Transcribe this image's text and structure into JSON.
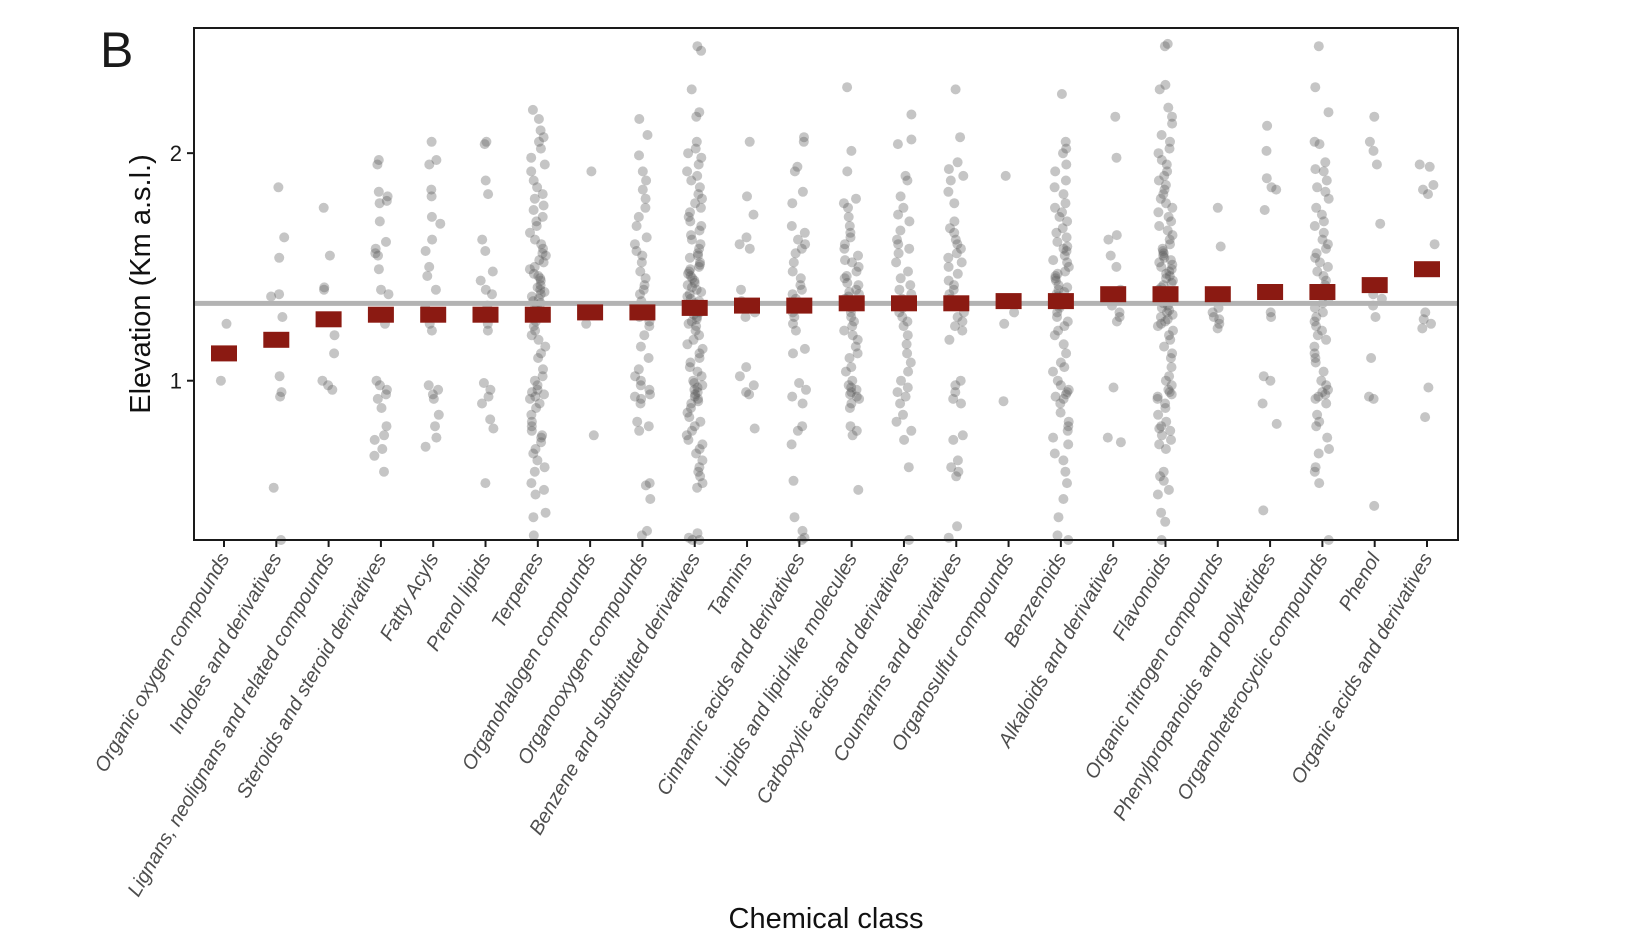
{
  "panel_label": "B",
  "chart_data": {
    "type": "scatter",
    "title": "",
    "xlabel": "Chemical class",
    "ylabel": "Elevation (Km a.s.l.)",
    "ylim": [
      0.3,
      2.55
    ],
    "yticks": [
      1,
      2
    ],
    "reference_line": 1.34,
    "grid": false,
    "legend": "none",
    "colors": {
      "points": "#595959",
      "mean_marker": "#8b1a12",
      "reference_line": "#b3b3b3",
      "frame": "#1a1a1a"
    },
    "categories": [
      "Organic oxygen compounds",
      "Indoles and derivatives",
      "Lignans, neolignans and related compounds",
      "Steroids and steroid derivatives",
      "Fatty Acyls",
      "Prenol lipids",
      "Terpenes",
      "Organohalogen compounds",
      "Organooxygen compounds",
      "Benzene and substituted derivatives",
      "Tannins",
      "Cinnamic acids and derivatives",
      "Lipids and lipid-like molecules",
      "Carboxylic acids and derivatives",
      "Coumarins and derivatives",
      "Organosulfur compounds",
      "Benzenoids",
      "Alkaloids and derivatives",
      "Flavonoids",
      "Organic nitrogen compounds",
      "Phenylpropanoids and polyketides",
      "Organoheterocyclic compounds",
      "Phenol",
      "Organic acids and derivatives"
    ],
    "means": [
      1.12,
      1.18,
      1.27,
      1.29,
      1.29,
      1.29,
      1.29,
      1.3,
      1.3,
      1.32,
      1.33,
      1.33,
      1.34,
      1.34,
      1.34,
      1.35,
      1.35,
      1.38,
      1.38,
      1.38,
      1.39,
      1.39,
      1.42,
      1.49
    ],
    "points": [
      [
        1.25,
        1.0
      ],
      [
        1.85,
        1.63,
        1.54,
        1.38,
        1.37,
        1.28,
        1.02,
        0.95,
        0.93,
        0.53,
        0.3
      ],
      [
        1.76,
        1.55,
        1.41,
        1.4,
        1.27,
        1.2,
        1.12,
        1.0,
        0.98,
        0.96
      ],
      [
        1.97,
        1.95,
        1.83,
        1.81,
        1.79,
        1.78,
        1.7,
        1.61,
        1.58,
        1.56,
        1.55,
        1.49,
        1.4,
        1.38,
        1.3,
        1.25,
        1.0,
        0.98,
        0.96,
        0.94,
        0.92,
        0.88,
        0.8,
        0.76,
        0.74,
        0.7,
        0.67,
        0.6
      ],
      [
        2.05,
        1.97,
        1.95,
        1.84,
        1.81,
        1.72,
        1.69,
        1.62,
        1.57,
        1.5,
        1.46,
        1.4,
        1.32,
        1.28,
        1.25,
        1.22,
        0.98,
        0.96,
        0.94,
        0.92,
        0.85,
        0.8,
        0.75,
        0.71
      ],
      [
        2.05,
        2.04,
        1.88,
        1.82,
        1.62,
        1.57,
        1.48,
        1.44,
        1.4,
        1.38,
        1.33,
        1.3,
        1.25,
        1.22,
        0.99,
        0.96,
        0.93,
        0.9,
        0.83,
        0.79,
        0.55
      ],
      [
        2.19,
        2.15,
        2.1,
        2.07,
        2.05,
        2.02,
        1.98,
        1.95,
        1.92,
        1.88,
        1.85,
        1.82,
        1.8,
        1.77,
        1.75,
        1.72,
        1.7,
        1.68,
        1.65,
        1.62,
        1.6,
        1.58,
        1.56,
        1.55,
        1.53,
        1.52,
        1.5,
        1.49,
        1.47,
        1.46,
        1.45,
        1.44,
        1.42,
        1.41,
        1.4,
        1.39,
        1.38,
        1.37,
        1.36,
        1.35,
        1.34,
        1.33,
        1.32,
        1.3,
        1.28,
        1.26,
        1.24,
        1.22,
        1.2,
        1.18,
        1.15,
        1.12,
        1.1,
        1.05,
        1.02,
        1.0,
        0.98,
        0.96,
        0.95,
        0.94,
        0.93,
        0.92,
        0.9,
        0.88,
        0.85,
        0.82,
        0.8,
        0.78,
        0.76,
        0.75,
        0.73,
        0.7,
        0.68,
        0.65,
        0.62,
        0.6,
        0.55,
        0.52,
        0.5,
        0.42,
        0.4,
        0.32
      ],
      [
        1.92,
        1.3,
        1.25,
        0.76
      ],
      [
        2.15,
        2.08,
        1.99,
        1.92,
        1.88,
        1.84,
        1.8,
        1.76,
        1.72,
        1.68,
        1.63,
        1.6,
        1.57,
        1.55,
        1.52,
        1.48,
        1.45,
        1.42,
        1.4,
        1.38,
        1.35,
        1.32,
        1.3,
        1.28,
        1.26,
        1.24,
        1.2,
        1.15,
        1.1,
        1.05,
        1.02,
        1.0,
        0.98,
        0.96,
        0.94,
        0.93,
        0.92,
        0.9,
        0.82,
        0.8,
        0.78,
        0.55,
        0.54,
        0.48,
        0.34,
        0.32
      ],
      [
        2.47,
        2.45,
        2.28,
        2.18,
        2.16,
        2.05,
        2.02,
        2.0,
        1.98,
        1.95,
        1.92,
        1.9,
        1.88,
        1.85,
        1.82,
        1.8,
        1.78,
        1.76,
        1.74,
        1.72,
        1.7,
        1.68,
        1.66,
        1.64,
        1.62,
        1.6,
        1.58,
        1.56,
        1.55,
        1.54,
        1.52,
        1.51,
        1.5,
        1.49,
        1.48,
        1.47,
        1.46,
        1.45,
        1.44,
        1.43,
        1.42,
        1.41,
        1.4,
        1.39,
        1.38,
        1.37,
        1.36,
        1.35,
        1.34,
        1.33,
        1.32,
        1.31,
        1.3,
        1.29,
        1.28,
        1.27,
        1.26,
        1.25,
        1.24,
        1.22,
        1.2,
        1.18,
        1.16,
        1.14,
        1.12,
        1.1,
        1.08,
        1.06,
        1.04,
        1.02,
        1.0,
        0.99,
        0.98,
        0.97,
        0.96,
        0.95,
        0.94,
        0.93,
        0.92,
        0.91,
        0.9,
        0.88,
        0.86,
        0.84,
        0.82,
        0.8,
        0.78,
        0.76,
        0.74,
        0.72,
        0.7,
        0.68,
        0.65,
        0.62,
        0.6,
        0.58,
        0.55,
        0.53,
        0.33,
        0.31,
        0.3,
        0.3
      ],
      [
        2.05,
        1.81,
        1.73,
        1.63,
        1.6,
        1.58,
        1.4,
        1.35,
        1.3,
        1.28,
        1.06,
        1.02,
        0.98,
        0.95,
        0.94,
        0.79
      ],
      [
        2.07,
        2.05,
        1.94,
        1.92,
        1.83,
        1.78,
        1.68,
        1.65,
        1.62,
        1.6,
        1.58,
        1.56,
        1.52,
        1.48,
        1.45,
        1.42,
        1.4,
        1.38,
        1.36,
        1.33,
        1.3,
        1.28,
        1.25,
        1.22,
        1.14,
        1.12,
        0.99,
        0.96,
        0.93,
        0.9,
        0.8,
        0.78,
        0.72,
        0.56,
        0.4,
        0.34,
        0.31,
        0.3
      ],
      [
        2.29,
        2.01,
        1.92,
        1.8,
        1.78,
        1.76,
        1.72,
        1.68,
        1.65,
        1.63,
        1.6,
        1.58,
        1.55,
        1.53,
        1.52,
        1.5,
        1.48,
        1.46,
        1.45,
        1.43,
        1.42,
        1.4,
        1.39,
        1.38,
        1.37,
        1.36,
        1.35,
        1.34,
        1.32,
        1.3,
        1.28,
        1.26,
        1.24,
        1.22,
        1.2,
        1.18,
        1.15,
        1.12,
        1.1,
        1.06,
        1.04,
        1.0,
        0.98,
        0.97,
        0.96,
        0.95,
        0.94,
        0.93,
        0.92,
        0.9,
        0.88,
        0.8,
        0.78,
        0.76,
        0.52
      ],
      [
        2.17,
        2.06,
        2.04,
        1.9,
        1.88,
        1.81,
        1.76,
        1.73,
        1.7,
        1.66,
        1.62,
        1.6,
        1.58,
        1.56,
        1.52,
        1.48,
        1.45,
        1.42,
        1.4,
        1.38,
        1.36,
        1.34,
        1.32,
        1.3,
        1.28,
        1.26,
        1.24,
        1.2,
        1.16,
        1.12,
        1.08,
        1.04,
        1.0,
        0.97,
        0.95,
        0.93,
        0.9,
        0.85,
        0.82,
        0.78,
        0.74,
        0.62,
        0.3
      ],
      [
        2.28,
        2.07,
        1.96,
        1.93,
        1.9,
        1.88,
        1.83,
        1.78,
        1.7,
        1.67,
        1.65,
        1.62,
        1.6,
        1.58,
        1.56,
        1.54,
        1.52,
        1.5,
        1.47,
        1.44,
        1.42,
        1.4,
        1.38,
        1.36,
        1.34,
        1.3,
        1.28,
        1.26,
        1.24,
        1.22,
        1.18,
        1.0,
        0.98,
        0.95,
        0.92,
        0.9,
        0.76,
        0.74,
        0.65,
        0.62,
        0.6,
        0.58,
        0.36,
        0.31
      ],
      [
        1.9,
        1.35,
        1.3,
        1.25,
        0.91
      ],
      [
        2.26,
        2.05,
        2.02,
        2.0,
        1.95,
        1.92,
        1.88,
        1.85,
        1.82,
        1.78,
        1.76,
        1.74,
        1.72,
        1.7,
        1.67,
        1.65,
        1.63,
        1.61,
        1.59,
        1.58,
        1.57,
        1.55,
        1.53,
        1.52,
        1.5,
        1.48,
        1.47,
        1.46,
        1.45,
        1.44,
        1.42,
        1.41,
        1.4,
        1.39,
        1.38,
        1.37,
        1.36,
        1.35,
        1.34,
        1.33,
        1.32,
        1.3,
        1.28,
        1.26,
        1.24,
        1.22,
        1.2,
        1.16,
        1.12,
        1.08,
        1.06,
        1.04,
        1.0,
        0.98,
        0.96,
        0.95,
        0.94,
        0.93,
        0.92,
        0.9,
        0.86,
        0.82,
        0.8,
        0.78,
        0.75,
        0.72,
        0.68,
        0.65,
        0.6,
        0.55,
        0.48,
        0.4,
        0.32,
        0.3
      ],
      [
        2.16,
        1.98,
        1.64,
        1.62,
        1.55,
        1.5,
        1.4,
        1.38,
        1.36,
        1.33,
        1.3,
        1.28,
        1.26,
        0.97,
        0.75,
        0.73
      ],
      [
        2.48,
        2.47,
        2.3,
        2.28,
        2.2,
        2.16,
        2.13,
        2.08,
        2.05,
        2.02,
        2.0,
        1.97,
        1.95,
        1.92,
        1.9,
        1.88,
        1.86,
        1.84,
        1.82,
        1.8,
        1.78,
        1.76,
        1.74,
        1.72,
        1.7,
        1.68,
        1.66,
        1.64,
        1.62,
        1.6,
        1.58,
        1.57,
        1.56,
        1.55,
        1.54,
        1.53,
        1.52,
        1.51,
        1.5,
        1.49,
        1.48,
        1.47,
        1.46,
        1.45,
        1.44,
        1.43,
        1.42,
        1.41,
        1.4,
        1.39,
        1.38,
        1.37,
        1.36,
        1.35,
        1.34,
        1.33,
        1.32,
        1.31,
        1.3,
        1.29,
        1.28,
        1.27,
        1.26,
        1.25,
        1.24,
        1.22,
        1.2,
        1.18,
        1.15,
        1.12,
        1.1,
        1.06,
        1.02,
        1.0,
        0.98,
        0.96,
        0.95,
        0.94,
        0.93,
        0.92,
        0.9,
        0.88,
        0.85,
        0.82,
        0.8,
        0.79,
        0.78,
        0.76,
        0.74,
        0.72,
        0.7,
        0.6,
        0.58,
        0.56,
        0.52,
        0.5,
        0.42,
        0.38,
        0.3
      ],
      [
        1.76,
        1.59,
        1.32,
        1.3,
        1.28,
        1.27,
        1.25,
        1.23
      ],
      [
        2.12,
        2.01,
        1.89,
        1.85,
        1.84,
        1.75,
        1.4,
        1.38,
        1.3,
        1.28,
        1.02,
        1.0,
        0.9,
        0.81,
        0.43
      ],
      [
        2.47,
        2.29,
        2.18,
        2.05,
        2.04,
        1.96,
        1.93,
        1.92,
        1.88,
        1.85,
        1.83,
        1.8,
        1.76,
        1.73,
        1.7,
        1.68,
        1.65,
        1.62,
        1.6,
        1.58,
        1.56,
        1.54,
        1.52,
        1.5,
        1.48,
        1.46,
        1.44,
        1.42,
        1.4,
        1.38,
        1.36,
        1.34,
        1.32,
        1.3,
        1.28,
        1.26,
        1.24,
        1.22,
        1.2,
        1.18,
        1.15,
        1.12,
        1.1,
        1.08,
        1.04,
        1.0,
        0.98,
        0.96,
        0.95,
        0.94,
        0.93,
        0.92,
        0.9,
        0.85,
        0.82,
        0.8,
        0.75,
        0.7,
        0.68,
        0.62,
        0.6,
        0.55,
        0.3
      ],
      [
        2.16,
        2.05,
        2.01,
        1.95,
        1.69,
        1.38,
        1.36,
        1.33,
        1.28,
        1.1,
        0.93,
        0.92,
        0.45
      ],
      [
        1.95,
        1.94,
        1.86,
        1.84,
        1.82,
        1.6,
        1.3,
        1.27,
        1.25,
        1.23,
        0.97,
        0.84
      ]
    ]
  }
}
